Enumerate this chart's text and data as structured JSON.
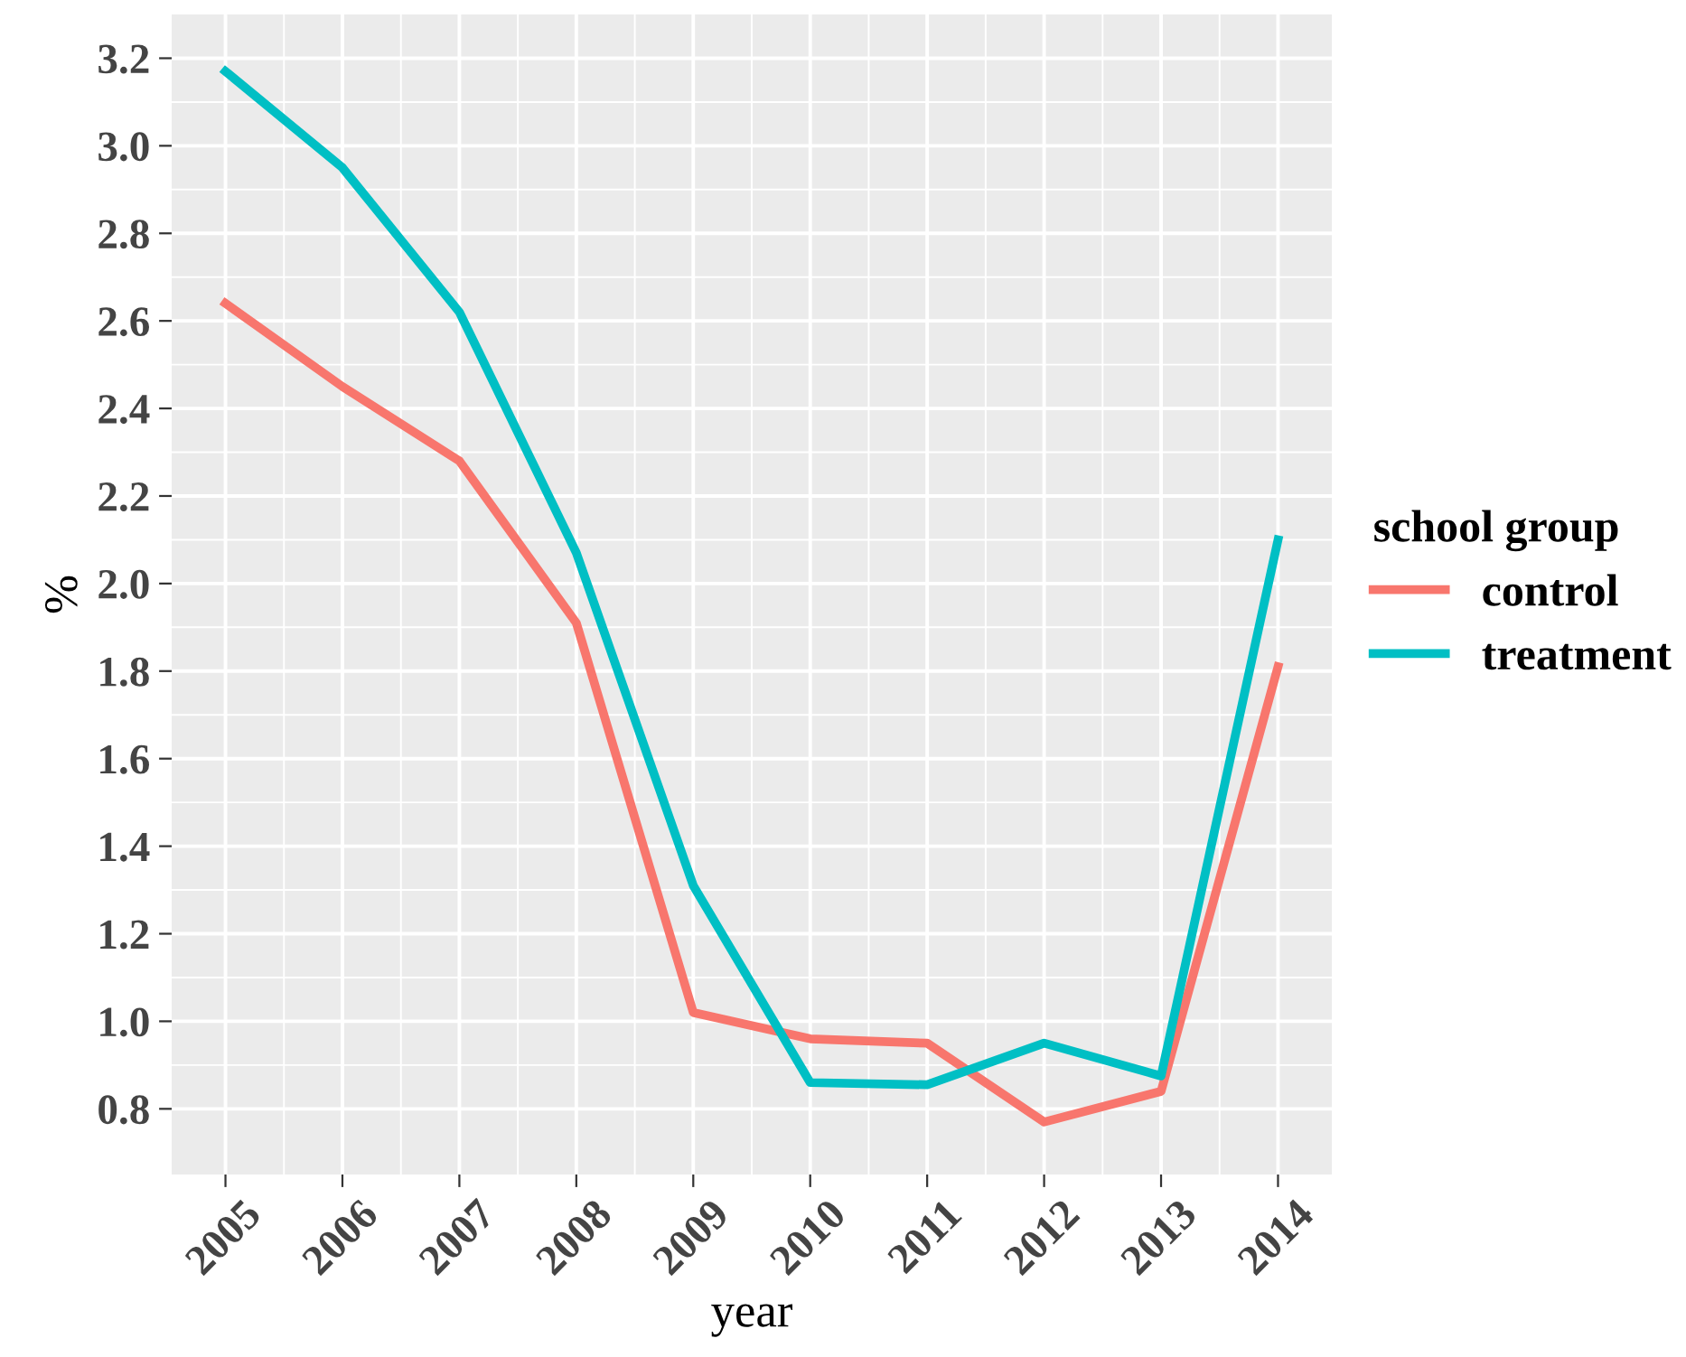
{
  "chart_data": {
    "type": "line",
    "xlabel": "year",
    "ylabel": "%",
    "legend_title": "school group",
    "legend": "right",
    "grid": true,
    "x": [
      2005,
      2006,
      2007,
      2008,
      2009,
      2010,
      2011,
      2012,
      2013,
      2014
    ],
    "series": [
      {
        "name": "control",
        "color": "#f8766d",
        "values": [
          2.64,
          2.45,
          2.28,
          1.91,
          1.02,
          0.96,
          0.95,
          0.77,
          0.84,
          1.81
        ]
      },
      {
        "name": "treatment",
        "color": "#00bfc4",
        "values": [
          3.17,
          2.95,
          2.62,
          2.07,
          1.31,
          0.86,
          0.855,
          0.95,
          0.875,
          2.1
        ]
      }
    ],
    "xlim": [
      2004.54,
      2014.46
    ],
    "ylim": [
      0.65,
      3.3
    ],
    "xticks": [
      2005,
      2006,
      2007,
      2008,
      2009,
      2010,
      2011,
      2012,
      2013,
      2014
    ],
    "yticks": [
      {
        "value": 0.8,
        "label": "0.8"
      },
      {
        "value": 1.0,
        "label": "1.0"
      },
      {
        "value": 1.2,
        "label": "1.2"
      },
      {
        "value": 1.4,
        "label": "1.4"
      },
      {
        "value": 1.6,
        "label": "1.6"
      },
      {
        "value": 1.8,
        "label": "1.8"
      },
      {
        "value": 2.0,
        "label": "2.0"
      },
      {
        "value": 2.2,
        "label": "2.2"
      },
      {
        "value": 2.4,
        "label": "2.4"
      },
      {
        "value": 2.6,
        "label": "2.6"
      },
      {
        "value": 2.8,
        "label": "2.8"
      },
      {
        "value": 3.0,
        "label": "3.0"
      },
      {
        "value": 3.2,
        "label": "3.2"
      }
    ]
  }
}
